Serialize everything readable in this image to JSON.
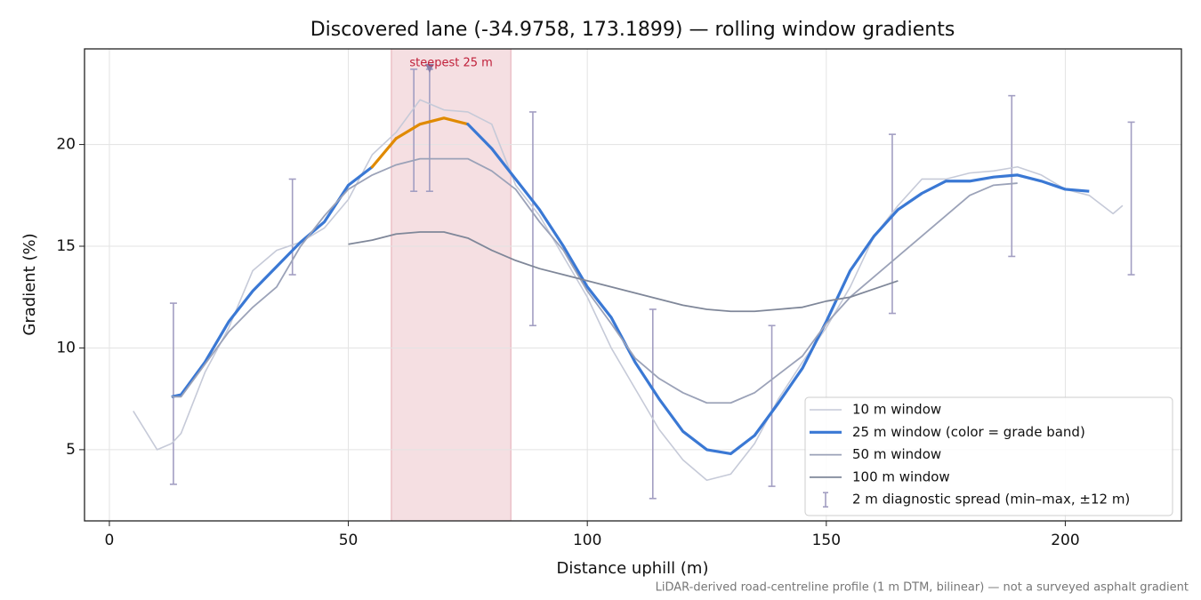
{
  "chart_data": {
    "type": "line",
    "title": "Discovered lane (-34.9758, 173.1899) — rolling window gradients",
    "x_label": "Distance uphill (m)",
    "y_label": "Gradient (%)",
    "note": "LiDAR-derived road-centreline profile (1 m DTM, bilinear) — not a surveyed asphalt gradient",
    "xlim": [
      -5.2,
      224.3
    ],
    "ylim": [
      1.5,
      24.7
    ],
    "xticks": [
      0,
      50,
      100,
      150,
      200
    ],
    "yticks": [
      5,
      10,
      15,
      20
    ],
    "grid": true,
    "legend": "lower right",
    "x": [
      5,
      10,
      13,
      15,
      20,
      25,
      30,
      35,
      40,
      45,
      50,
      55,
      60,
      65,
      70,
      75,
      80,
      85,
      90,
      95,
      100,
      105,
      110,
      115,
      120,
      125,
      130,
      135,
      140,
      145,
      150,
      155,
      160,
      165,
      170,
      175,
      180,
      185,
      190,
      195,
      200,
      205,
      210,
      212
    ],
    "series": [
      {
        "name": "10 m window",
        "color": "#c6cad8",
        "width": 1.6,
        "values": [
          6.9,
          5.0,
          5.3,
          5.8,
          8.8,
          11.0,
          13.8,
          14.8,
          15.2,
          15.9,
          17.3,
          19.5,
          20.6,
          22.2,
          21.7,
          21.6,
          21.0,
          18.0,
          16.5,
          14.5,
          12.5,
          10.0,
          8.0,
          6.0,
          4.5,
          3.5,
          3.8,
          5.3,
          7.5,
          9.3,
          11.0,
          13.0,
          15.5,
          17.0,
          18.3,
          18.3,
          18.6,
          18.7,
          18.9,
          18.5,
          17.8,
          17.5,
          16.6,
          17.0
        ]
      },
      {
        "name": "25 m window (color = grade band)",
        "color": "#3a78d4",
        "width": 3.2,
        "grade_band": {
          "min": 20,
          "color": "#e08a00"
        },
        "values": [
          null,
          null,
          7.6,
          7.7,
          9.3,
          11.3,
          12.8,
          14.0,
          15.2,
          16.2,
          18.0,
          18.9,
          20.3,
          21.0,
          21.3,
          21.0,
          19.8,
          18.3,
          16.8,
          15.0,
          13.0,
          11.5,
          9.3,
          7.5,
          5.9,
          5.0,
          4.8,
          5.7,
          7.3,
          9.0,
          11.3,
          13.8,
          15.5,
          16.8,
          17.6,
          18.2,
          18.2,
          18.4,
          18.5,
          18.2,
          17.8,
          17.7,
          null,
          null
        ]
      },
      {
        "name": "50 m window",
        "color": "#9ba2b8",
        "width": 1.8,
        "values": [
          null,
          null,
          7.6,
          7.6,
          9.2,
          10.8,
          12.0,
          13.0,
          15.0,
          16.5,
          17.8,
          18.5,
          19.0,
          19.3,
          19.3,
          19.3,
          18.7,
          17.8,
          16.2,
          14.8,
          12.8,
          11.2,
          9.5,
          8.5,
          7.8,
          7.3,
          7.3,
          7.8,
          8.7,
          9.6,
          11.2,
          12.5,
          13.5,
          14.5,
          15.5,
          16.5,
          17.5,
          18.0,
          18.1,
          null,
          null,
          null,
          null,
          null
        ]
      },
      {
        "name": "100 m window",
        "color": "#7f8799",
        "width": 1.8,
        "values": [
          null,
          null,
          null,
          null,
          null,
          null,
          null,
          null,
          null,
          null,
          15.1,
          15.3,
          15.6,
          15.7,
          15.7,
          15.4,
          14.8,
          14.3,
          13.9,
          13.6,
          13.3,
          13.0,
          12.7,
          12.4,
          12.1,
          11.9,
          11.8,
          11.8,
          11.9,
          12.0,
          12.3,
          12.5,
          12.9,
          13.3,
          null,
          null,
          null,
          null,
          null,
          null,
          null,
          null,
          null,
          null
        ]
      }
    ],
    "spread": {
      "name": "2 m diagnostic spread (min–max, ±12 m)",
      "color": "#a29ec2",
      "x": [
        13.4,
        38.3,
        63.7,
        67.0,
        88.6,
        113.7,
        138.6,
        163.8,
        188.8,
        213.8
      ],
      "low": [
        3.3,
        13.6,
        17.7,
        17.7,
        11.1,
        2.6,
        3.2,
        11.7,
        14.5,
        13.6
      ],
      "high": [
        12.2,
        18.3,
        23.7,
        23.7,
        21.6,
        11.9,
        11.1,
        20.5,
        22.4,
        21.1
      ]
    },
    "steepest": {
      "label": "steepest 25 m",
      "x": 67,
      "y": 23.7,
      "span": [
        59,
        84
      ],
      "color": "#c0203a",
      "fill": "#f5dfe2"
    }
  }
}
